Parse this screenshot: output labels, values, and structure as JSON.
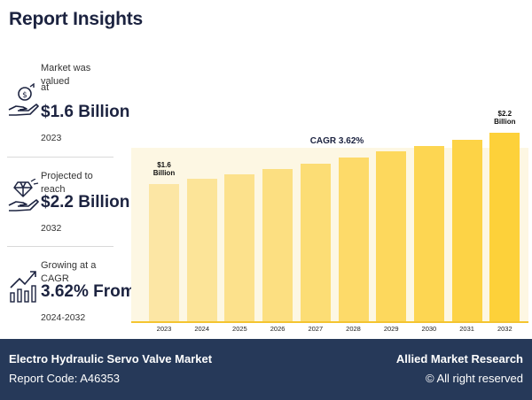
{
  "header": {
    "title": "Report Insights"
  },
  "stats": [
    {
      "label_line1": "Market was valued",
      "label_line2": "at",
      "value": "$1.6 Billion",
      "sub": "2023",
      "icon": "money-hand-icon"
    },
    {
      "label_line1": "Projected to reach",
      "label_line2": "",
      "value": "$2.2 Billion",
      "sub": "2032",
      "icon": "diamond-hand-icon"
    },
    {
      "label_line1": "Growing at a CAGR",
      "label_line2": "",
      "value": "3.62% From",
      "sub": "2024-2032",
      "icon": "growth-chart-icon"
    }
  ],
  "chart_data": {
    "type": "bar",
    "title": "CAGR 3.62%",
    "categories": [
      "2023",
      "2024",
      "2025",
      "2026",
      "2027",
      "2028",
      "2029",
      "2030",
      "2031",
      "2032"
    ],
    "values": [
      1.6,
      1.66,
      1.72,
      1.78,
      1.84,
      1.91,
      1.98,
      2.05,
      2.12,
      2.2
    ],
    "unit": "Billion USD",
    "annotations": [
      {
        "category": "2023",
        "line1": "$1.6",
        "line2": "Billion"
      },
      {
        "category": "2032",
        "line1": "$2.2",
        "line2": "Billion"
      }
    ],
    "ylim": [
      0,
      2.5
    ],
    "xlabel": "",
    "ylabel": "",
    "colors": {
      "start": "#fce6a4",
      "end": "#fdd13a",
      "background": "#fdf7e3",
      "axis": "#f4c430"
    }
  },
  "footer": {
    "market_title": "Electro Hydraulic Servo Valve Market",
    "report_code": "Report Code: A46353",
    "brand": "Allied Market Research",
    "rights": "© All right reserved"
  }
}
